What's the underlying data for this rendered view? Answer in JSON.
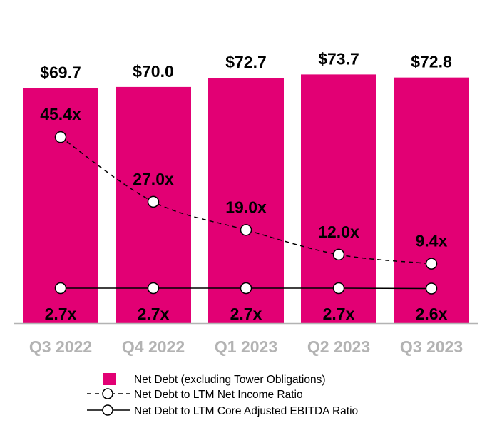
{
  "chart_data": {
    "type": "bar",
    "categories": [
      "Q3 2022",
      "Q4 2022",
      "Q1 2023",
      "Q2 2023",
      "Q3 2023"
    ],
    "series": [
      {
        "name": "Net Debt (excluding Tower Obligations)",
        "kind": "bar",
        "values": [
          69.7,
          70.0,
          72.7,
          73.7,
          72.8
        ],
        "labels": [
          "$69.7",
          "$70.0",
          "$72.7",
          "$73.7",
          "$72.8"
        ],
        "color": "#e20074"
      },
      {
        "name": "Net Debt to LTM Net Income Ratio",
        "kind": "line-dashed",
        "values": [
          45.4,
          27.0,
          19.0,
          12.0,
          9.4
        ],
        "labels": [
          "45.4x",
          "27.0x",
          "19.0x",
          "12.0x",
          "9.4x"
        ],
        "color": "#000000"
      },
      {
        "name": "Net Debt to LTM Core Adjusted EBITDA Ratio",
        "kind": "line-solid",
        "values": [
          2.7,
          2.7,
          2.7,
          2.7,
          2.6
        ],
        "labels": [
          "2.7x",
          "2.7x",
          "2.7x",
          "2.7x",
          "2.6x"
        ],
        "color": "#000000"
      }
    ],
    "title": "",
    "xlabel": "",
    "ylabel": "",
    "grid": false,
    "legend": "bottom",
    "tick_color": "#b3b3b3"
  }
}
